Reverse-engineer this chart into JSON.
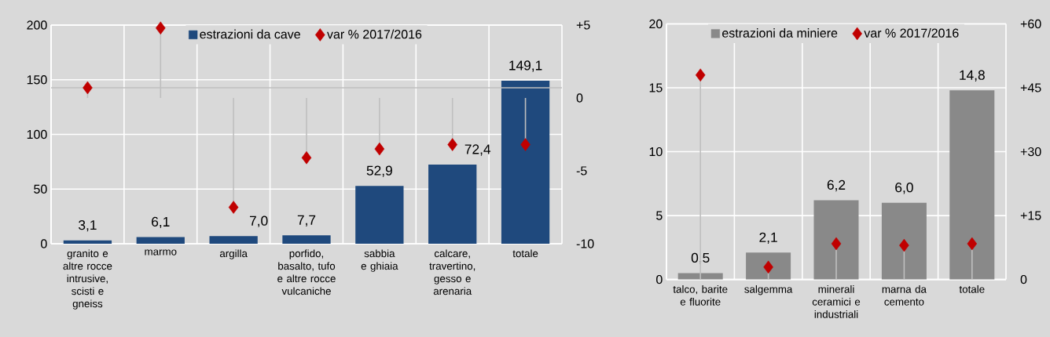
{
  "chart_data": [
    {
      "type": "bar",
      "categories": [
        "granito e altre rocce intrusive, scisti e gneiss",
        "marmo",
        "argilla",
        "porfido, basalto, tufo e altre rocce vulcaniche",
        "sabbia e ghiaia",
        "calcare, travertino, gesso e arenaria",
        "totale"
      ],
      "series": [
        {
          "name": "estrazioni da cave",
          "color": "#1f497d",
          "values": [
            3.1,
            6.1,
            7.0,
            7.7,
            52.9,
            72.4,
            149.1
          ],
          "value_labels": [
            "3,1",
            "6,1",
            "7,0",
            "7,7",
            "52,9",
            "72,4",
            "149,1"
          ]
        },
        {
          "name": "var % 2017/2016",
          "type": "lollipop",
          "axis": "y2",
          "color": "#c00000",
          "values": [
            0.7,
            4.8,
            -7.5,
            -4.1,
            -3.5,
            -3.2,
            -3.2
          ]
        }
      ],
      "ylim": [
        0,
        200
      ],
      "yticks": [
        0,
        50,
        100,
        150,
        200
      ],
      "y2lim": [
        -10,
        5
      ],
      "y2ticks": [
        {
          "value": 5,
          "label": "+5"
        },
        0,
        -5,
        -10
      ],
      "ref_lines": [
        {
          "axis": "y2",
          "value": 0.7,
          "color": "#bfbfbf"
        }
      ],
      "grid": true,
      "legend": "top",
      "marker": "diamond"
    },
    {
      "type": "bar",
      "categories": [
        "talco, barite e fluorite",
        "salgemma",
        "minerali ceramici e industriali",
        "marna da cemento",
        "totale"
      ],
      "series": [
        {
          "name": "estrazioni da miniere",
          "color": "#898989",
          "values": [
            0.5,
            2.1,
            6.2,
            6.0,
            14.8
          ],
          "value_labels": [
            "0,5",
            "2,1",
            "6,2",
            "6,0",
            "14,8"
          ]
        },
        {
          "name": "var % 2017/2016",
          "type": "lollipop",
          "axis": "y2",
          "color": "#c00000",
          "values": [
            48,
            2.9,
            8.4,
            8.0,
            8.4
          ]
        }
      ],
      "ylim": [
        0,
        20
      ],
      "yticks": [
        0,
        5,
        10,
        15,
        20
      ],
      "y2lim": [
        0,
        60
      ],
      "y2ticks": [
        0,
        {
          "value": 15,
          "label": "+15"
        },
        {
          "value": 30,
          "label": "+30"
        },
        {
          "value": 45,
          "label": "+45"
        },
        {
          "value": 60,
          "label": "+60"
        }
      ],
      "grid": true,
      "legend": "top",
      "marker": "diamond"
    }
  ]
}
